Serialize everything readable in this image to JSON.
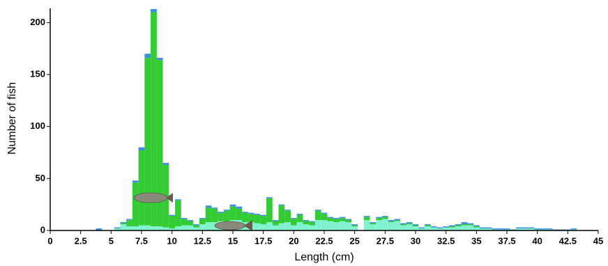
{
  "chart_data": {
    "type": "histogram",
    "stacked": true,
    "x_label": "Length (cm)",
    "y_label": "Number of fish",
    "xlim": [
      0,
      45
    ],
    "ylim": [
      0,
      215
    ],
    "xticks": [
      0,
      2.5,
      5,
      7.5,
      10,
      12.5,
      15,
      17.5,
      20,
      22.5,
      25,
      27.5,
      30,
      32.5,
      35,
      37.5,
      40,
      42.5,
      45
    ],
    "yticks": [
      0,
      50,
      100,
      150,
      200
    ],
    "grid": false,
    "bins": [
      3.75,
      4.25,
      4.75,
      5.25,
      5.75,
      6.25,
      6.75,
      7.25,
      7.75,
      8.25,
      8.75,
      9.25,
      9.75,
      10.25,
      10.75,
      11.25,
      11.75,
      12.25,
      12.75,
      13.25,
      13.75,
      14.25,
      14.75,
      15.25,
      15.75,
      16.25,
      16.75,
      17.25,
      17.75,
      18.25,
      18.75,
      19.25,
      19.75,
      20.25,
      20.75,
      21.25,
      21.75,
      22.25,
      22.75,
      23.25,
      23.75,
      24.25,
      24.75,
      25.25,
      25.75,
      26.25,
      26.75,
      27.25,
      27.75,
      28.25,
      28.75,
      29.25,
      29.75,
      30.25,
      30.75,
      31.25,
      31.75,
      32.25,
      32.75,
      33.25,
      33.75,
      34.25,
      34.75,
      35.25,
      35.75,
      36.25,
      36.75,
      37.25,
      37.75,
      38.25,
      38.75,
      39.25,
      39.75,
      40.25,
      40.75,
      41.25,
      41.75,
      42.25,
      42.75,
      43.25
    ],
    "series": [
      {
        "color": "#80f2cf",
        "values": [
          0,
          0,
          0,
          2,
          6,
          4,
          4,
          5,
          5,
          4,
          4,
          3,
          2,
          4,
          5,
          5,
          3,
          6,
          8,
          8,
          9,
          8,
          10,
          10,
          8,
          8,
          7,
          6,
          8,
          5,
          7,
          8,
          5,
          8,
          6,
          5,
          10,
          10,
          9,
          8,
          9,
          8,
          4,
          0,
          10,
          6,
          10,
          11,
          8,
          9,
          5,
          6,
          4,
          2,
          4,
          3,
          2,
          3,
          3,
          4,
          5,
          5,
          3,
          2,
          2,
          1,
          1,
          1,
          0,
          2,
          2,
          2,
          1,
          1,
          1,
          0,
          0,
          0,
          1
        ]
      },
      {
        "color": "#33cc33",
        "values": [
          0,
          0,
          0,
          0,
          1,
          6,
          42,
          72,
          161,
          206,
          160,
          60,
          12,
          25,
          6,
          4,
          2,
          5,
          14,
          13,
          8,
          11,
          13,
          11,
          9,
          8,
          8,
          8,
          23,
          4,
          17,
          11,
          6,
          7,
          3,
          3,
          9,
          6,
          3,
          3,
          3,
          2,
          1,
          0,
          3,
          1,
          2,
          2,
          1,
          1,
          1,
          1,
          1,
          0,
          1,
          0,
          0,
          0,
          1,
          1,
          1,
          1,
          1,
          0,
          0,
          0,
          0,
          0,
          0,
          0,
          0,
          0,
          0,
          0,
          0,
          0,
          0,
          0,
          0
        ]
      },
      {
        "color": "#3c8fe0",
        "values": [
          2,
          0,
          0,
          1,
          1,
          1,
          2,
          3,
          4,
          3,
          2,
          2,
          1,
          1,
          1,
          1,
          1,
          1,
          2,
          1,
          1,
          1,
          2,
          2,
          1,
          1,
          1,
          1,
          1,
          1,
          1,
          1,
          1,
          1,
          1,
          1,
          1,
          1,
          1,
          1,
          1,
          1,
          1,
          0,
          1,
          1,
          1,
          1,
          1,
          1,
          1,
          1,
          1,
          1,
          1,
          1,
          1,
          1,
          1,
          1,
          2,
          1,
          1,
          1,
          1,
          1,
          1,
          1,
          1,
          1,
          1,
          1,
          1,
          1,
          1,
          1,
          1,
          1,
          1
        ]
      }
    ]
  }
}
